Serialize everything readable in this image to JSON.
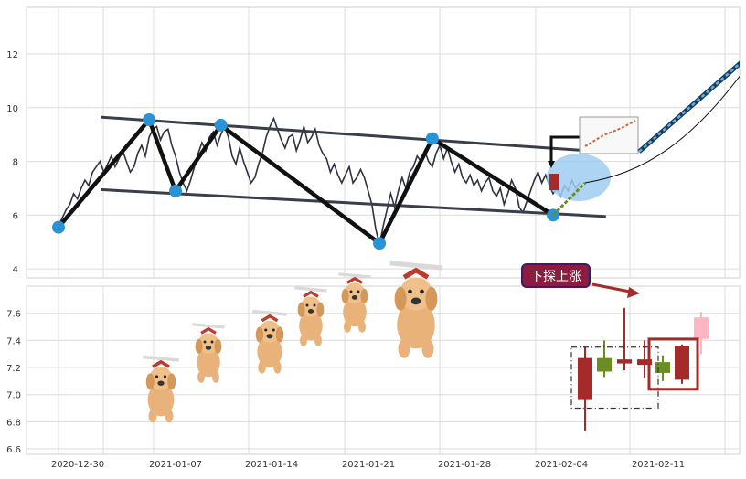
{
  "chart_data": [
    {
      "type": "line",
      "panel": "top",
      "ylim": [
        3.8,
        13.6
      ],
      "y_ticks": [
        4,
        6,
        8,
        10,
        12
      ],
      "grid": true,
      "series_line": {
        "name": "",
        "color": "#30333f",
        "y": [
          5.6,
          5.9,
          6.2,
          6.4,
          6.8,
          6.6,
          7.0,
          7.3,
          7.1,
          7.6,
          7.8,
          8.0,
          7.6,
          7.9,
          8.2,
          7.8,
          8.1,
          8.4,
          8.0,
          7.6,
          7.8,
          8.3,
          8.6,
          8.2,
          8.9,
          9.2,
          9.3,
          8.8,
          9.1,
          9.2,
          8.6,
          8.2,
          7.6,
          7.2,
          6.9,
          7.3,
          7.8,
          8.3,
          8.7,
          8.4,
          8.9,
          9.1,
          8.6,
          9.0,
          9.3,
          8.9,
          8.2,
          7.9,
          8.5,
          8.0,
          7.6,
          7.2,
          7.4,
          7.9,
          8.3,
          8.9,
          9.3,
          9.6,
          9.2,
          8.8,
          8.5,
          8.9,
          9.0,
          8.4,
          8.8,
          9.3,
          8.7,
          8.9,
          9.2,
          8.6,
          8.3,
          8.1,
          7.6,
          7.9,
          7.5,
          7.2,
          7.5,
          7.8,
          7.2,
          7.4,
          7.7,
          7.4,
          6.9,
          6.4,
          5.5,
          4.9,
          5.6,
          6.2,
          6.8,
          6.3,
          6.9,
          7.4,
          7.0,
          7.6,
          7.8,
          8.2,
          8.0,
          8.4,
          8.0,
          7.8,
          8.3,
          8.6,
          8.1,
          8.5,
          8.0,
          7.6,
          7.9,
          7.4,
          7.2,
          7.5,
          7.1,
          7.3,
          6.9,
          7.2,
          7.4,
          6.9,
          6.7,
          7.0,
          6.4,
          6.8,
          7.3,
          7.0,
          6.3,
          6.1,
          6.5,
          6.9,
          7.3,
          7.6,
          7.2,
          7.5,
          7.1,
          6.8,
          7.0,
          6.7,
          7.1,
          6.9,
          7.3,
          7.0,
          7.2
        ]
      },
      "zigzag": {
        "x_index": [
          0,
          24,
          31,
          43,
          85,
          99,
          131
        ],
        "y": [
          5.55,
          9.55,
          6.9,
          9.35,
          4.95,
          8.85,
          6.0
        ]
      },
      "channel_upper": {
        "from": [
          0,
          9.65
        ],
        "to": [
          145,
          8.35
        ]
      },
      "channel_lower": {
        "from": [
          0,
          6.95
        ],
        "to": [
          145,
          5.95
        ]
      },
      "target_point": {
        "x_index": 190,
        "y": 12.4
      }
    },
    {
      "type": "candlestick",
      "panel": "bottom",
      "ylim": [
        6.58,
        7.78
      ],
      "y_ticks": [
        6.6,
        6.8,
        7.0,
        7.2,
        7.4,
        7.6
      ],
      "grid": true,
      "x_ticks": [
        "2020-12-30",
        "2021-01-07",
        "2021-01-14",
        "2021-01-21",
        "2021-01-28",
        "2021-02-04",
        "2021-02-11"
      ],
      "candles": [
        {
          "open": 7.27,
          "close": 6.96,
          "high": 7.35,
          "low": 6.73,
          "color": "#a52a2a"
        },
        {
          "open": 7.17,
          "close": 7.27,
          "high": 7.4,
          "low": 7.13,
          "color": "#6b8e23"
        },
        {
          "open": 7.26,
          "close": 7.23,
          "high": 7.64,
          "low": 7.18,
          "color": "#a52a2a"
        },
        {
          "open": 7.26,
          "close": 7.22,
          "high": 7.4,
          "low": 7.12,
          "color": "#a52a2a"
        },
        {
          "open": 7.16,
          "close": 7.24,
          "high": 7.29,
          "low": 7.1,
          "color": "#6b8e23"
        },
        {
          "open": 7.36,
          "close": 7.11,
          "high": 7.37,
          "low": 7.08,
          "color": "#a52a2a"
        },
        {
          "open": 7.57,
          "close": 7.41,
          "high": 7.61,
          "low": 7.3,
          "color": "#ffb6c1"
        }
      ],
      "annotation": "下探上涨"
    }
  ]
}
